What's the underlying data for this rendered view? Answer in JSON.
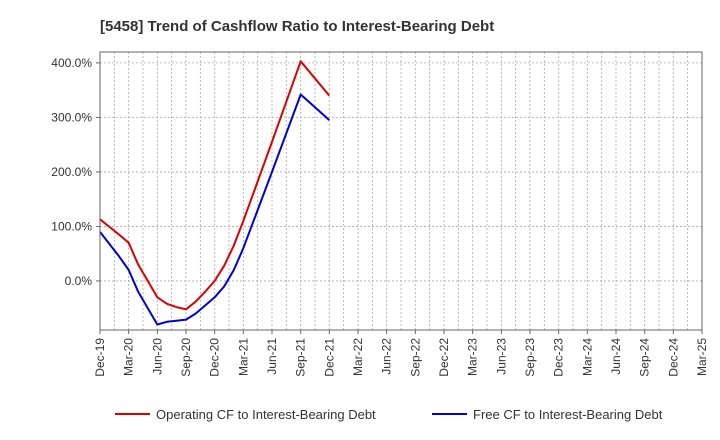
{
  "chart_data": {
    "type": "line",
    "title": "[5458]  Trend of Cashflow Ratio to Interest-Bearing Debt",
    "xlabel": "",
    "ylabel": "",
    "x": [
      "Dec-19",
      "Mar-20",
      "Jun-20",
      "Sep-20",
      "Dec-20",
      "Mar-21",
      "Jun-21",
      "Sep-21",
      "Dec-21",
      "Mar-22",
      "Jun-22",
      "Sep-22",
      "Dec-22",
      "Mar-23",
      "Jun-23",
      "Sep-23",
      "Dec-23",
      "Mar-24",
      "Jun-24",
      "Sep-24",
      "Dec-24",
      "Mar-25"
    ],
    "x_ticks": [
      "Dec-19",
      "Mar-20",
      "Jun-20",
      "Sep-20",
      "Dec-20",
      "Mar-21",
      "Jun-21",
      "Sep-21",
      "Dec-21",
      "Mar-22",
      "Jun-22",
      "Sep-22",
      "Dec-22",
      "Mar-23",
      "Jun-23",
      "Sep-23",
      "Dec-23",
      "Mar-24",
      "Jun-24",
      "Sep-24",
      "Dec-24",
      "Mar-25"
    ],
    "ylim": [
      -90,
      420
    ],
    "y_ticks": [
      0,
      100,
      200,
      300,
      400
    ],
    "y_tick_labels": [
      "0.0%",
      "100.0%",
      "200.0%",
      "300.0%",
      "400.0%"
    ],
    "grid": true,
    "legend_position": "bottom",
    "series": [
      {
        "name": "Operating CF to Interest-Bearing Debt",
        "color": "#dd0000",
        "points": [
          [
            "Dec-19",
            113
          ],
          [
            "Feb-20",
            85
          ],
          [
            "Mar-20",
            70
          ],
          [
            "Apr-20",
            30
          ],
          [
            "May-20",
            0
          ],
          [
            "Jun-20",
            -30
          ],
          [
            "Jul-20",
            -42
          ],
          [
            "Aug-20",
            -48
          ],
          [
            "Sep-20",
            -52
          ],
          [
            "Oct-20",
            -38
          ],
          [
            "Nov-20",
            -20
          ],
          [
            "Dec-20",
            0
          ],
          [
            "Jan-21",
            28
          ],
          [
            "Feb-21",
            65
          ],
          [
            "Mar-21",
            110
          ],
          [
            "Jun-21",
            255
          ],
          [
            "Sep-21",
            403
          ],
          [
            "Dec-21",
            340
          ]
        ]
      },
      {
        "name": "Free CF to Interest-Bearing Debt",
        "color": "#0000dd",
        "points": [
          [
            "Dec-19",
            90
          ],
          [
            "Feb-20",
            45
          ],
          [
            "Mar-20",
            20
          ],
          [
            "Apr-20",
            -20
          ],
          [
            "May-20",
            -50
          ],
          [
            "Jun-20",
            -80
          ],
          [
            "Jul-20",
            -75
          ],
          [
            "Aug-20",
            -73
          ],
          [
            "Sep-20",
            -71
          ],
          [
            "Oct-20",
            -60
          ],
          [
            "Nov-20",
            -45
          ],
          [
            "Dec-20",
            -30
          ],
          [
            "Jan-21",
            -10
          ],
          [
            "Feb-21",
            20
          ],
          [
            "Mar-21",
            60
          ],
          [
            "Jun-21",
            200
          ],
          [
            "Sep-21",
            342
          ],
          [
            "Dec-21",
            295
          ]
        ]
      }
    ]
  }
}
